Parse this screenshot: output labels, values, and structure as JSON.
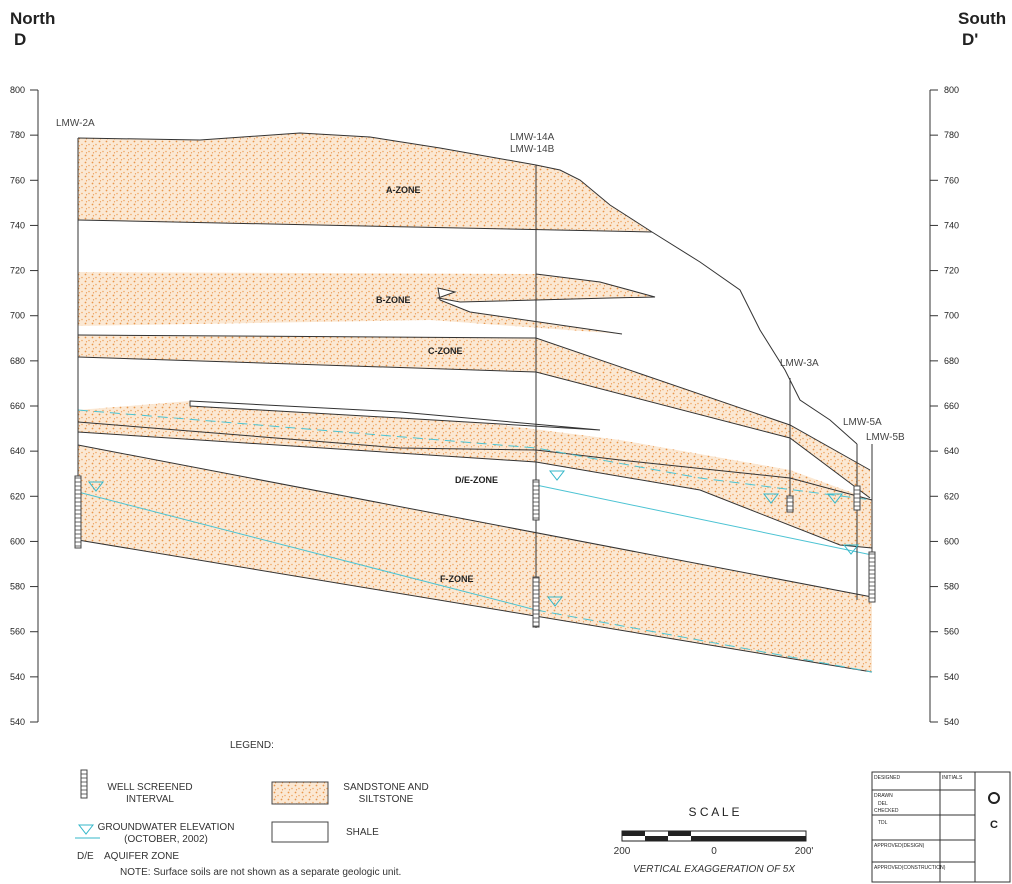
{
  "header": {
    "north": "North",
    "north_section": "D",
    "south": "South",
    "south_section": "D'"
  },
  "axis": {
    "left_labels": [
      "800",
      "780",
      "760",
      "740",
      "720",
      "700",
      "680",
      "660",
      "640",
      "620",
      "600",
      "580",
      "560",
      "540",
      "540"
    ],
    "right_labels": [
      "800",
      "780",
      "760",
      "740",
      "720",
      "700",
      "680",
      "660",
      "640",
      "620",
      "600",
      "580",
      "560",
      "540",
      "540"
    ]
  },
  "wells": [
    "LMW-2A",
    "LMW-14A",
    "LMW-14B",
    "LMW-3A",
    "LMW-5A",
    "LMW-5B"
  ],
  "zones": [
    "A-ZONE",
    "B-ZONE",
    "C-ZONE",
    "D/E-ZONE",
    "F-ZONE"
  ],
  "legend": {
    "title": "LEGEND:",
    "screen": [
      "WELL SCREENED",
      "INTERVAL"
    ],
    "groundwater": [
      "GROUNDWATER ELEVATION",
      "(OCTOBER, 2002)"
    ],
    "aquifer": [
      "D/E",
      "AQUIFER ZONE"
    ],
    "sandstone": [
      "SANDSTONE AND",
      "SILTSTONE"
    ],
    "shale": "SHALE",
    "note": "NOTE: Surface soils are not shown as a separate geologic unit."
  },
  "scale": {
    "title": "S C A L E",
    "labels": [
      "200",
      "0",
      "200'"
    ],
    "exaggeration": "VERTICAL EXAGGERATION OF 5X"
  },
  "title_block": [
    "DESIGNED",
    "INITIALS",
    "DRAWN",
    "DEL",
    "CHECKED",
    "TDL",
    "APPROVED(DESIGN)",
    "APPROVED(CONSTRUCTION)",
    "C"
  ]
}
